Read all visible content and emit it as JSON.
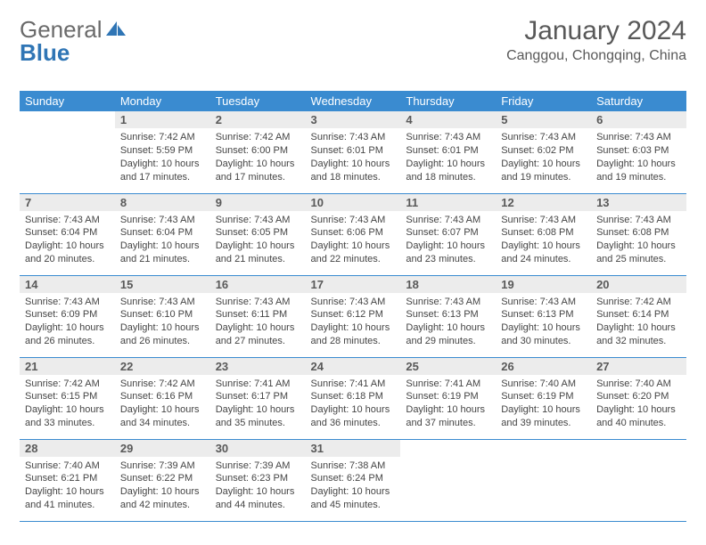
{
  "brand": {
    "text1": "General",
    "text2": "Blue"
  },
  "title": "January 2024",
  "location": "Canggou, Chongqing, China",
  "colors": {
    "header_bg": "#3a8bd0",
    "header_text": "#ffffff",
    "daynum_bg": "#ececec",
    "daynum_text": "#595959",
    "body_text": "#454545",
    "rule": "#3a8bd0",
    "logo_gray": "#6a6a6a",
    "logo_blue": "#2f75b5"
  },
  "typography": {
    "title_fontsize": 30,
    "location_fontsize": 16,
    "dayheader_fontsize": 13,
    "daynum_fontsize": 13,
    "celltext_fontsize": 11
  },
  "day_names": [
    "Sunday",
    "Monday",
    "Tuesday",
    "Wednesday",
    "Thursday",
    "Friday",
    "Saturday"
  ],
  "weeks": [
    [
      {
        "n": "",
        "lines": [
          "",
          "",
          "",
          ""
        ]
      },
      {
        "n": "1",
        "lines": [
          "Sunrise: 7:42 AM",
          "Sunset: 5:59 PM",
          "Daylight: 10 hours",
          "and 17 minutes."
        ]
      },
      {
        "n": "2",
        "lines": [
          "Sunrise: 7:42 AM",
          "Sunset: 6:00 PM",
          "Daylight: 10 hours",
          "and 17 minutes."
        ]
      },
      {
        "n": "3",
        "lines": [
          "Sunrise: 7:43 AM",
          "Sunset: 6:01 PM",
          "Daylight: 10 hours",
          "and 18 minutes."
        ]
      },
      {
        "n": "4",
        "lines": [
          "Sunrise: 7:43 AM",
          "Sunset: 6:01 PM",
          "Daylight: 10 hours",
          "and 18 minutes."
        ]
      },
      {
        "n": "5",
        "lines": [
          "Sunrise: 7:43 AM",
          "Sunset: 6:02 PM",
          "Daylight: 10 hours",
          "and 19 minutes."
        ]
      },
      {
        "n": "6",
        "lines": [
          "Sunrise: 7:43 AM",
          "Sunset: 6:03 PM",
          "Daylight: 10 hours",
          "and 19 minutes."
        ]
      }
    ],
    [
      {
        "n": "7",
        "lines": [
          "Sunrise: 7:43 AM",
          "Sunset: 6:04 PM",
          "Daylight: 10 hours",
          "and 20 minutes."
        ]
      },
      {
        "n": "8",
        "lines": [
          "Sunrise: 7:43 AM",
          "Sunset: 6:04 PM",
          "Daylight: 10 hours",
          "and 21 minutes."
        ]
      },
      {
        "n": "9",
        "lines": [
          "Sunrise: 7:43 AM",
          "Sunset: 6:05 PM",
          "Daylight: 10 hours",
          "and 21 minutes."
        ]
      },
      {
        "n": "10",
        "lines": [
          "Sunrise: 7:43 AM",
          "Sunset: 6:06 PM",
          "Daylight: 10 hours",
          "and 22 minutes."
        ]
      },
      {
        "n": "11",
        "lines": [
          "Sunrise: 7:43 AM",
          "Sunset: 6:07 PM",
          "Daylight: 10 hours",
          "and 23 minutes."
        ]
      },
      {
        "n": "12",
        "lines": [
          "Sunrise: 7:43 AM",
          "Sunset: 6:08 PM",
          "Daylight: 10 hours",
          "and 24 minutes."
        ]
      },
      {
        "n": "13",
        "lines": [
          "Sunrise: 7:43 AM",
          "Sunset: 6:08 PM",
          "Daylight: 10 hours",
          "and 25 minutes."
        ]
      }
    ],
    [
      {
        "n": "14",
        "lines": [
          "Sunrise: 7:43 AM",
          "Sunset: 6:09 PM",
          "Daylight: 10 hours",
          "and 26 minutes."
        ]
      },
      {
        "n": "15",
        "lines": [
          "Sunrise: 7:43 AM",
          "Sunset: 6:10 PM",
          "Daylight: 10 hours",
          "and 26 minutes."
        ]
      },
      {
        "n": "16",
        "lines": [
          "Sunrise: 7:43 AM",
          "Sunset: 6:11 PM",
          "Daylight: 10 hours",
          "and 27 minutes."
        ]
      },
      {
        "n": "17",
        "lines": [
          "Sunrise: 7:43 AM",
          "Sunset: 6:12 PM",
          "Daylight: 10 hours",
          "and 28 minutes."
        ]
      },
      {
        "n": "18",
        "lines": [
          "Sunrise: 7:43 AM",
          "Sunset: 6:13 PM",
          "Daylight: 10 hours",
          "and 29 minutes."
        ]
      },
      {
        "n": "19",
        "lines": [
          "Sunrise: 7:43 AM",
          "Sunset: 6:13 PM",
          "Daylight: 10 hours",
          "and 30 minutes."
        ]
      },
      {
        "n": "20",
        "lines": [
          "Sunrise: 7:42 AM",
          "Sunset: 6:14 PM",
          "Daylight: 10 hours",
          "and 32 minutes."
        ]
      }
    ],
    [
      {
        "n": "21",
        "lines": [
          "Sunrise: 7:42 AM",
          "Sunset: 6:15 PM",
          "Daylight: 10 hours",
          "and 33 minutes."
        ]
      },
      {
        "n": "22",
        "lines": [
          "Sunrise: 7:42 AM",
          "Sunset: 6:16 PM",
          "Daylight: 10 hours",
          "and 34 minutes."
        ]
      },
      {
        "n": "23",
        "lines": [
          "Sunrise: 7:41 AM",
          "Sunset: 6:17 PM",
          "Daylight: 10 hours",
          "and 35 minutes."
        ]
      },
      {
        "n": "24",
        "lines": [
          "Sunrise: 7:41 AM",
          "Sunset: 6:18 PM",
          "Daylight: 10 hours",
          "and 36 minutes."
        ]
      },
      {
        "n": "25",
        "lines": [
          "Sunrise: 7:41 AM",
          "Sunset: 6:19 PM",
          "Daylight: 10 hours",
          "and 37 minutes."
        ]
      },
      {
        "n": "26",
        "lines": [
          "Sunrise: 7:40 AM",
          "Sunset: 6:19 PM",
          "Daylight: 10 hours",
          "and 39 minutes."
        ]
      },
      {
        "n": "27",
        "lines": [
          "Sunrise: 7:40 AM",
          "Sunset: 6:20 PM",
          "Daylight: 10 hours",
          "and 40 minutes."
        ]
      }
    ],
    [
      {
        "n": "28",
        "lines": [
          "Sunrise: 7:40 AM",
          "Sunset: 6:21 PM",
          "Daylight: 10 hours",
          "and 41 minutes."
        ]
      },
      {
        "n": "29",
        "lines": [
          "Sunrise: 7:39 AM",
          "Sunset: 6:22 PM",
          "Daylight: 10 hours",
          "and 42 minutes."
        ]
      },
      {
        "n": "30",
        "lines": [
          "Sunrise: 7:39 AM",
          "Sunset: 6:23 PM",
          "Daylight: 10 hours",
          "and 44 minutes."
        ]
      },
      {
        "n": "31",
        "lines": [
          "Sunrise: 7:38 AM",
          "Sunset: 6:24 PM",
          "Daylight: 10 hours",
          "and 45 minutes."
        ]
      },
      {
        "n": "",
        "lines": [
          "",
          "",
          "",
          ""
        ]
      },
      {
        "n": "",
        "lines": [
          "",
          "",
          "",
          ""
        ]
      },
      {
        "n": "",
        "lines": [
          "",
          "",
          "",
          ""
        ]
      }
    ]
  ]
}
